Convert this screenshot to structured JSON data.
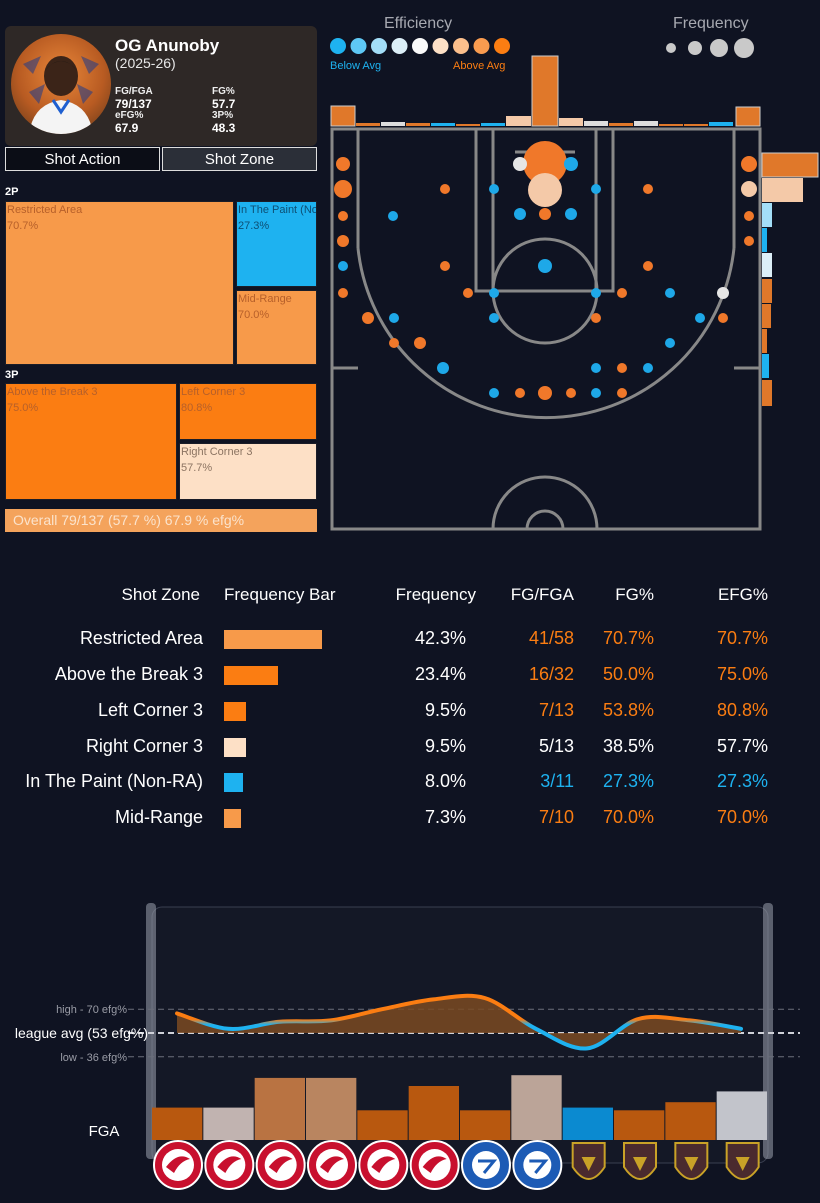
{
  "player": {
    "name": "OG Anunoby",
    "season": "(2025-26)",
    "stats": [
      {
        "label": "FG/FGA",
        "value": "79/137"
      },
      {
        "label": "FG%",
        "value": "57.7"
      },
      {
        "label": "eFG%",
        "value": "67.9"
      },
      {
        "label": "3P%",
        "value": "48.3"
      }
    ]
  },
  "toggles": {
    "action": "Shot Action",
    "zone": "Shot Zone"
  },
  "treemap": {
    "group_2p": "2P",
    "group_3p": "3P",
    "tiles": [
      {
        "name": "Restricted Area",
        "pct": "70.7%",
        "color": "#f79a4a",
        "text": "#b7602a"
      },
      {
        "name": "In The Paint (Non-RA)",
        "pct": "27.3%",
        "color": "#1eb2f0",
        "text": "#0d4f74"
      },
      {
        "name": "Mid-Range",
        "pct": "70.0%",
        "color": "#f79a4a",
        "text": "#b7602a"
      },
      {
        "name": "Above the Break 3",
        "pct": "75.0%",
        "color": "#fb7d12",
        "text": "#b7602a"
      },
      {
        "name": "Left Corner 3",
        "pct": "80.8%",
        "color": "#fb7d12",
        "text": "#b7602a"
      },
      {
        "name": "Right Corner 3",
        "pct": "57.7%",
        "color": "#fde0c6",
        "text": "#8c7462"
      }
    ],
    "overall": "Overall 79/137 (57.7 %) 67.9 % efg%"
  },
  "legend": {
    "efficiency_title": "Efficiency",
    "frequency_title": "Frequency",
    "below": "Below Avg",
    "above": "Above Avg",
    "efficiency_colors": [
      "#1eb2f0",
      "#5ec8f5",
      "#a3def8",
      "#dceff8",
      "#fafafa",
      "#fde0c6",
      "#fbbf8c",
      "#f99b4f",
      "#fb7d12"
    ],
    "below_color": "#1eb2f0",
    "above_color": "#fb7d12"
  },
  "table": {
    "headers": [
      "Shot Zone",
      "Frequency Bar",
      "Frequency",
      "FG/FGA",
      "FG%",
      "EFG%"
    ],
    "rows": [
      {
        "zone": "Restricted Area",
        "freq": "42.3%",
        "fgfga": "41/58",
        "fg": "70.7%",
        "efg": "70.7%",
        "bar_color": "#f79a4a",
        "freq_value": 42.3,
        "fgfga_color": "#fb7d12",
        "fg_color": "#fb7d12",
        "efg_color": "#fb7d12"
      },
      {
        "zone": "Above the Break 3",
        "freq": "23.4%",
        "fgfga": "16/32",
        "fg": "50.0%",
        "efg": "75.0%",
        "bar_color": "#fb7d12",
        "freq_value": 23.4,
        "fgfga_color": "#fb7d12",
        "fg_color": "#fb7d12",
        "efg_color": "#fb7d12"
      },
      {
        "zone": "Left Corner 3",
        "freq": "9.5%",
        "fgfga": "7/13",
        "fg": "53.8%",
        "efg": "80.8%",
        "bar_color": "#fb7d12",
        "freq_value": 9.5,
        "fgfga_color": "#fb7d12",
        "fg_color": "#fb7d12",
        "efg_color": "#fb7d12"
      },
      {
        "zone": "Right Corner 3",
        "freq": "9.5%",
        "fgfga": "5/13",
        "fg": "38.5%",
        "efg": "57.7%",
        "bar_color": "#fde0c6",
        "freq_value": 9.5,
        "fgfga_color": "#ffffff",
        "fg_color": "#ffffff",
        "efg_color": "#ffffff"
      },
      {
        "zone": "In The Paint (Non-RA)",
        "freq": "8.0%",
        "fgfga": "3/11",
        "fg": "27.3%",
        "efg": "27.3%",
        "bar_color": "#1eb2f0",
        "freq_value": 8.0,
        "fgfga_color": "#1eb2f0",
        "fg_color": "#1eb2f0",
        "efg_color": "#1eb2f0"
      },
      {
        "zone": "Mid-Range",
        "freq": "7.3%",
        "fgfga": "7/10",
        "fg": "70.0%",
        "efg": "70.0%",
        "bar_color": "#f79a4a",
        "freq_value": 7.3,
        "fgfga_color": "#fb7d12",
        "fg_color": "#fb7d12",
        "efg_color": "#fb7d12"
      }
    ]
  },
  "chart_data": {
    "type": "line",
    "high_label": "high - 70 efg%",
    "avg_label": "league avg (53 efg%)",
    "low_label": "low - 36 efg%",
    "bar_axis_label": "FGA",
    "high": 70,
    "avg": 53,
    "low": 36,
    "efg_values": [
      67,
      56,
      61,
      62,
      70,
      77,
      78,
      56,
      42,
      63,
      62,
      56
    ],
    "fga_values": [
      12,
      12,
      23,
      23,
      11,
      20,
      11,
      24,
      12,
      11,
      14,
      18
    ],
    "fga_colors": [
      "#b8580f",
      "#c1b3b0",
      "#b97342",
      "#b98560",
      "#b8580f",
      "#b8580f",
      "#b8580f",
      "#bba498",
      "#0b8ad0",
      "#b8580f",
      "#b8580f",
      "#c2c4cb"
    ],
    "games": [
      {
        "team": "hawks",
        "logo_color": "#c8102e"
      },
      {
        "team": "hawks",
        "logo_color": "#c8102e"
      },
      {
        "team": "hawks",
        "logo_color": "#c8102e"
      },
      {
        "team": "hawks",
        "logo_color": "#c8102e"
      },
      {
        "team": "hawks",
        "logo_color": "#c8102e"
      },
      {
        "team": "hawks",
        "logo_color": "#c8102e"
      },
      {
        "team": "76ers",
        "logo_color": "#1d5bb5"
      },
      {
        "team": "76ers",
        "logo_color": "#1d5bb5"
      },
      {
        "team": "cavaliers",
        "logo_color": "#4a2a2e"
      },
      {
        "team": "cavaliers",
        "logo_color": "#4a2a2e"
      },
      {
        "team": "cavaliers",
        "logo_color": "#4a2a2e"
      },
      {
        "team": "cavaliers",
        "logo_color": "#4a2a2e"
      }
    ]
  }
}
